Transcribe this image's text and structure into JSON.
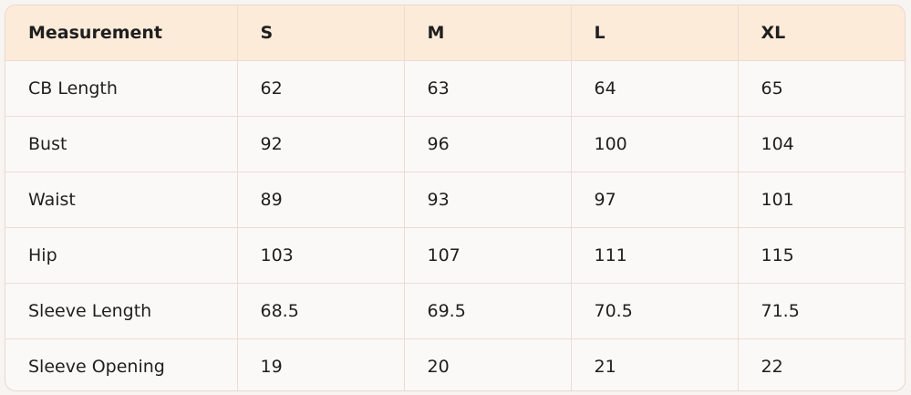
{
  "table": {
    "header": [
      "Measurement",
      "S",
      "M",
      "L",
      "XL"
    ],
    "rows": [
      [
        "CB Length",
        "62",
        "63",
        "64",
        "65"
      ],
      [
        "Bust",
        "92",
        "96",
        "100",
        "104"
      ],
      [
        "Waist",
        "89",
        "93",
        "97",
        "101"
      ],
      [
        "Hip",
        "103",
        "107",
        "111",
        "115"
      ],
      [
        "Sleeve Length",
        "68.5",
        "69.5",
        "70.5",
        "71.5"
      ],
      [
        "Sleeve Opening",
        "19",
        "20",
        "21",
        "22"
      ]
    ]
  }
}
